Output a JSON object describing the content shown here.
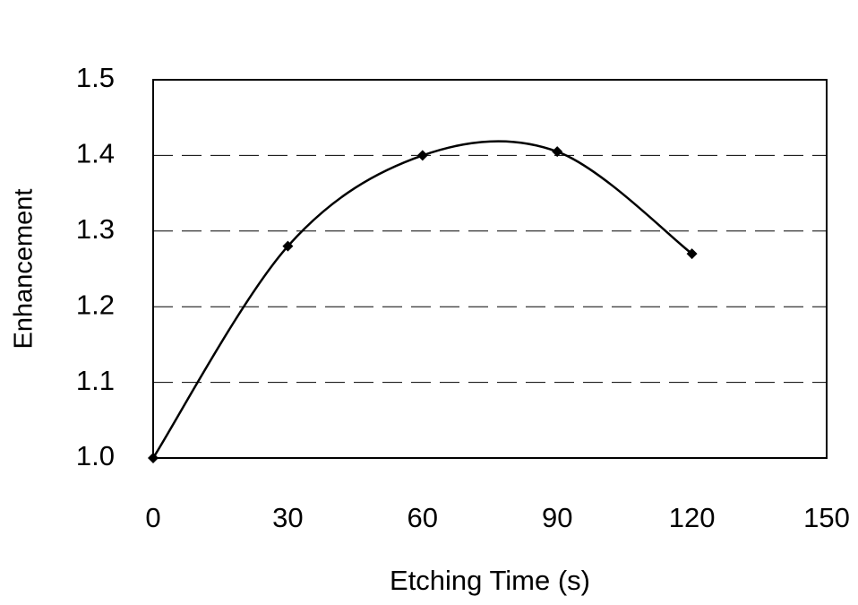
{
  "chart_data": {
    "type": "line",
    "x_label": "Etching Time (s)",
    "y_label": "Enhancement",
    "x": [
      0,
      30,
      60,
      90,
      120
    ],
    "series": [
      {
        "name": "Enhancement",
        "color": "#000000",
        "values": [
          1.0,
          1.28,
          1.4,
          1.405,
          1.27
        ]
      }
    ],
    "smooth": true,
    "marker": "diamond",
    "xlim": [
      0,
      150
    ],
    "xticks": [
      0,
      30,
      60,
      90,
      120,
      150
    ],
    "ylim": [
      1.0,
      1.5
    ],
    "yticks": [
      {
        "value": 1,
        "label": "1.0"
      },
      1.1,
      1.2,
      1.3,
      1.4,
      1.5
    ],
    "grid": true,
    "grid_style": "dashed"
  }
}
